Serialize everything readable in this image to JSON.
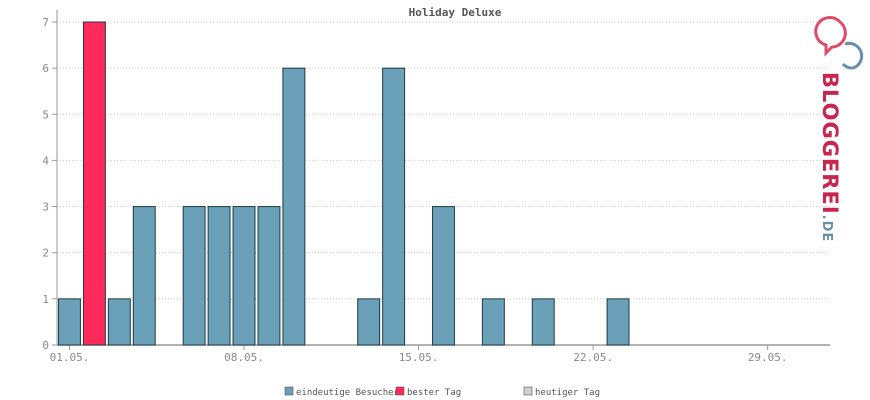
{
  "chart_data": {
    "type": "bar",
    "title": "Holiday Deluxe",
    "xlabel": "",
    "ylabel": "",
    "days_in_range": 31,
    "x_tick_labels": [
      "01.05.",
      "08.05.",
      "15.05.",
      "22.05.",
      "29.05."
    ],
    "x_tick_days": [
      1,
      8,
      15,
      22,
      29
    ],
    "ylim": [
      0,
      7
    ],
    "y_ticks": [
      0,
      1,
      2,
      3,
      4,
      5,
      6,
      7
    ],
    "grid": true,
    "legend_position": "bottom-center",
    "series": [
      {
        "name": "eindeutige Besucher",
        "color": "#6aa0b8",
        "points": [
          {
            "day": 1,
            "value": 1
          },
          {
            "day": 2,
            "value": 7,
            "highlight": "bester Tag"
          },
          {
            "day": 3,
            "value": 1
          },
          {
            "day": 4,
            "value": 3
          },
          {
            "day": 6,
            "value": 3
          },
          {
            "day": 7,
            "value": 3
          },
          {
            "day": 8,
            "value": 3
          },
          {
            "day": 9,
            "value": 3
          },
          {
            "day": 10,
            "value": 6
          },
          {
            "day": 13,
            "value": 1
          },
          {
            "day": 14,
            "value": 6
          },
          {
            "day": 16,
            "value": 3
          },
          {
            "day": 18,
            "value": 1
          },
          {
            "day": 20,
            "value": 1
          },
          {
            "day": 23,
            "value": 1
          }
        ]
      }
    ],
    "legend": [
      {
        "label": "eindeutige Besucher",
        "color": "#6aa0b8"
      },
      {
        "label": "bester Tag",
        "color": "#ff2a5a"
      },
      {
        "label": "heutiger Tag",
        "color": "#d0d0d0"
      }
    ]
  },
  "brand": {
    "logo_icon": "bloggerei-speech-bubbles-icon",
    "name_main": "BLOGGEREI",
    "name_suffix": ".DE",
    "color_main": "#c8264e",
    "color_suffix": "#6a8fa8"
  }
}
